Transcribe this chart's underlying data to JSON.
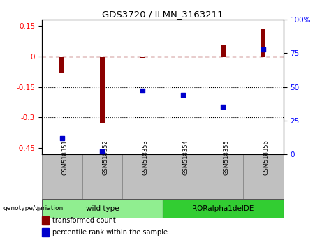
{
  "title": "GDS3720 / ILMN_3163211",
  "samples": [
    "GSM518351",
    "GSM518352",
    "GSM518353",
    "GSM518354",
    "GSM518355",
    "GSM518356"
  ],
  "groups": [
    {
      "label": "wild type",
      "indices": [
        0,
        1,
        2
      ],
      "color": "#90EE90"
    },
    {
      "label": "RORalpha1delDE",
      "indices": [
        3,
        4,
        5
      ],
      "color": "#32CD32"
    }
  ],
  "bar_values": [
    -0.082,
    -0.325,
    -0.008,
    -0.004,
    0.058,
    0.132
  ],
  "pct_values": [
    12,
    2,
    47,
    44,
    35,
    78
  ],
  "ylim_left": [
    -0.48,
    0.18
  ],
  "ylim_right": [
    0,
    100
  ],
  "yticks_left": [
    0.15,
    0.0,
    -0.15,
    -0.3,
    -0.45
  ],
  "yticks_right": [
    100,
    75,
    50,
    25,
    0
  ],
  "dotted_lines": [
    -0.15,
    -0.3
  ],
  "bar_color": "#8B0000",
  "scatter_color": "#0000CC",
  "legend_labels": [
    "transformed count",
    "percentile rank within the sample"
  ],
  "genotype_label": "genotype/variation",
  "sample_box_color": "#C0C0C0",
  "background_color": "#FFFFFF",
  "bar_width": 0.12
}
